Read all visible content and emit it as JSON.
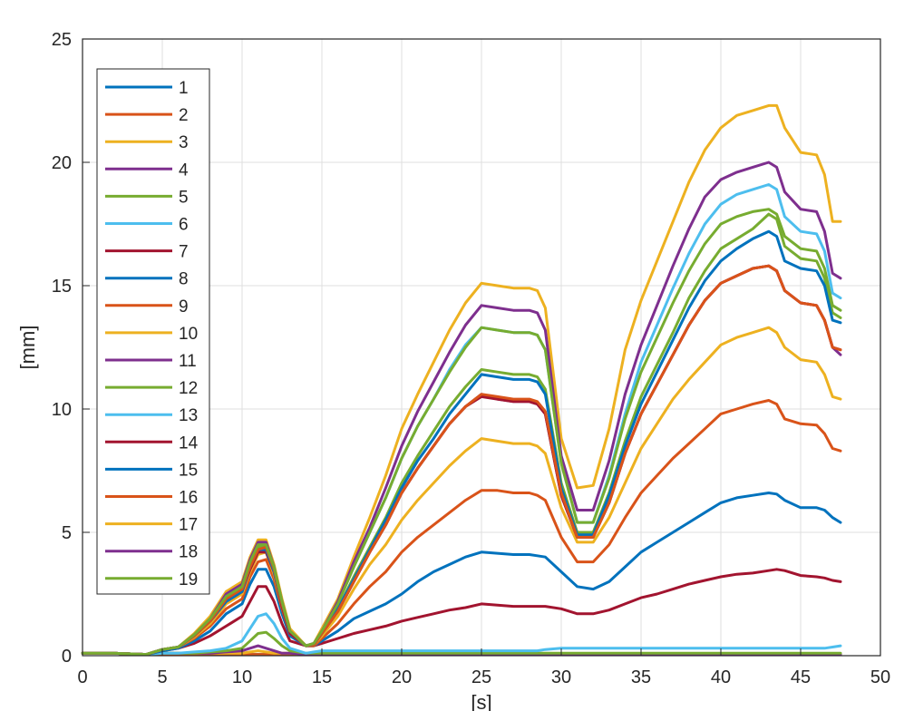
{
  "chart_data": {
    "type": "line",
    "xlabel": "[s]",
    "ylabel": "[mm]",
    "xlim": [
      0,
      50
    ],
    "ylim": [
      0,
      25
    ],
    "x_ticks": [
      0,
      5,
      10,
      15,
      20,
      25,
      30,
      35,
      40,
      45,
      50
    ],
    "y_ticks": [
      0,
      5,
      10,
      15,
      20,
      25
    ],
    "grid": true,
    "legend_placement": "top-left",
    "colors": [
      "#0072BD",
      "#D95319",
      "#EDB120",
      "#7E2F8E",
      "#77AC30",
      "#4DBEEE",
      "#A2142F"
    ],
    "x": [
      0,
      2,
      4,
      5,
      6,
      7,
      8,
      9,
      10,
      10.5,
      11,
      11.5,
      12,
      12.5,
      13,
      14,
      14.5,
      15,
      16,
      17,
      18,
      19,
      20,
      21,
      22,
      23,
      24,
      25,
      26,
      27,
      28,
      28.5,
      29,
      30,
      31,
      32,
      33,
      34,
      35,
      36,
      37,
      38,
      39,
      40,
      41,
      42,
      43,
      43.5,
      44,
      45,
      46,
      46.5,
      47,
      47.5
    ],
    "series": [
      {
        "name": "1",
        "values": [
          0.1,
          0.1,
          0.05,
          0.05,
          0.05,
          0.05,
          0.05,
          0.05,
          0.05,
          0.05,
          0.05,
          0.05,
          0.05,
          0.05,
          0.05,
          0.05,
          0.05,
          0.05,
          0.05,
          0.05,
          0.05,
          0.05,
          0.05,
          0.05,
          0.05,
          0.05,
          0.05,
          0.05,
          0.05,
          0.05,
          0.05,
          0.05,
          0.05,
          0.05,
          0.05,
          0.05,
          0.05,
          0.05,
          0.05,
          0.05,
          0.05,
          0.05,
          0.05,
          0.05,
          0.05,
          0.05,
          0.05,
          0.05,
          0.05,
          0.05,
          0.05,
          0.05,
          0.05,
          0.05
        ]
      },
      {
        "name": "2",
        "values": [
          0.1,
          0.1,
          0.05,
          0.05,
          0.05,
          0.05,
          0.05,
          0.05,
          0.05,
          0.05,
          0.05,
          0.05,
          0.05,
          0.05,
          0.05,
          0.05,
          0.05,
          0.05,
          0.05,
          0.05,
          0.05,
          0.05,
          0.05,
          0.05,
          0.05,
          0.05,
          0.05,
          0.05,
          0.05,
          0.05,
          0.05,
          0.05,
          0.05,
          0.05,
          0.05,
          0.05,
          0.05,
          0.05,
          0.05,
          0.05,
          0.05,
          0.05,
          0.05,
          0.05,
          0.05,
          0.05,
          0.05,
          0.05,
          0.05,
          0.05,
          0.05,
          0.05,
          0.05,
          0.05
        ]
      },
      {
        "name": "3",
        "values": [
          0.1,
          0.1,
          0.05,
          0.1,
          0.1,
          0.1,
          0.1,
          0.1,
          0.1,
          0.15,
          0.2,
          0.15,
          0.1,
          0.1,
          0.1,
          0.05,
          0.05,
          0.05,
          0.05,
          0.05,
          0.05,
          0.05,
          0.05,
          0.05,
          0.05,
          0.05,
          0.05,
          0.05,
          0.05,
          0.05,
          0.05,
          0.05,
          0.05,
          0.05,
          0.05,
          0.05,
          0.05,
          0.05,
          0.05,
          0.05,
          0.05,
          0.05,
          0.05,
          0.05,
          0.05,
          0.05,
          0.05,
          0.05,
          0.05,
          0.05,
          0.05,
          0.05,
          0.05,
          0.05
        ]
      },
      {
        "name": "4",
        "values": [
          0.1,
          0.1,
          0.05,
          0.1,
          0.1,
          0.1,
          0.1,
          0.15,
          0.2,
          0.3,
          0.4,
          0.3,
          0.2,
          0.1,
          0.1,
          0.05,
          0.05,
          0.05,
          0.05,
          0.05,
          0.05,
          0.05,
          0.05,
          0.05,
          0.05,
          0.05,
          0.05,
          0.05,
          0.05,
          0.05,
          0.05,
          0.05,
          0.05,
          0.05,
          0.05,
          0.05,
          0.05,
          0.05,
          0.05,
          0.05,
          0.05,
          0.05,
          0.05,
          0.05,
          0.05,
          0.05,
          0.05,
          0.05,
          0.05,
          0.05,
          0.05,
          0.05,
          0.05,
          0.05
        ]
      },
      {
        "name": "5",
        "values": [
          0.1,
          0.1,
          0.05,
          0.1,
          0.1,
          0.1,
          0.15,
          0.2,
          0.3,
          0.6,
          0.9,
          0.95,
          0.7,
          0.4,
          0.2,
          0.1,
          0.1,
          0.1,
          0.1,
          0.1,
          0.1,
          0.1,
          0.1,
          0.1,
          0.1,
          0.1,
          0.1,
          0.1,
          0.1,
          0.1,
          0.1,
          0.1,
          0.1,
          0.1,
          0.1,
          0.1,
          0.1,
          0.1,
          0.1,
          0.1,
          0.1,
          0.1,
          0.1,
          0.1,
          0.1,
          0.1,
          0.1,
          0.1,
          0.1,
          0.1,
          0.1,
          0.1,
          0.1,
          0.1
        ]
      },
      {
        "name": "6",
        "values": [
          0.1,
          0.1,
          0.05,
          0.1,
          0.1,
          0.15,
          0.2,
          0.3,
          0.6,
          1.1,
          1.6,
          1.7,
          1.3,
          0.7,
          0.3,
          0.1,
          0.15,
          0.2,
          0.2,
          0.2,
          0.2,
          0.2,
          0.2,
          0.2,
          0.2,
          0.2,
          0.2,
          0.2,
          0.2,
          0.2,
          0.2,
          0.2,
          0.25,
          0.3,
          0.3,
          0.3,
          0.3,
          0.3,
          0.3,
          0.3,
          0.3,
          0.3,
          0.3,
          0.3,
          0.3,
          0.3,
          0.3,
          0.3,
          0.3,
          0.3,
          0.3,
          0.3,
          0.35,
          0.4
        ]
      },
      {
        "name": "7",
        "values": [
          0.1,
          0.1,
          0.05,
          0.2,
          0.3,
          0.5,
          0.8,
          1.2,
          1.6,
          2.2,
          2.8,
          2.8,
          2.2,
          1.3,
          0.6,
          0.4,
          0.4,
          0.5,
          0.7,
          0.9,
          1.05,
          1.2,
          1.4,
          1.55,
          1.7,
          1.85,
          1.95,
          2.1,
          2.05,
          2.0,
          2.0,
          2.0,
          2.0,
          1.9,
          1.7,
          1.7,
          1.85,
          2.1,
          2.35,
          2.5,
          2.7,
          2.9,
          3.05,
          3.2,
          3.3,
          3.35,
          3.45,
          3.5,
          3.45,
          3.25,
          3.2,
          3.15,
          3.05,
          3.0
        ]
      },
      {
        "name": "8",
        "values": [
          0.1,
          0.1,
          0.05,
          0.2,
          0.3,
          0.6,
          1.0,
          1.7,
          2.1,
          2.9,
          3.5,
          3.5,
          2.8,
          1.7,
          0.8,
          0.4,
          0.4,
          0.6,
          1.0,
          1.5,
          1.8,
          2.1,
          2.5,
          3.0,
          3.4,
          3.7,
          4.0,
          4.2,
          4.15,
          4.1,
          4.1,
          4.05,
          4.0,
          3.4,
          2.8,
          2.7,
          3.0,
          3.6,
          4.2,
          4.6,
          5.0,
          5.4,
          5.8,
          6.2,
          6.4,
          6.5,
          6.6,
          6.55,
          6.3,
          6.0,
          6.0,
          5.9,
          5.6,
          5.4
        ]
      },
      {
        "name": "9",
        "values": [
          0.1,
          0.1,
          0.05,
          0.25,
          0.35,
          0.7,
          1.2,
          1.9,
          2.3,
          3.2,
          3.8,
          3.9,
          3.1,
          1.9,
          0.9,
          0.4,
          0.4,
          0.7,
          1.3,
          2.1,
          2.8,
          3.4,
          4.2,
          4.8,
          5.3,
          5.8,
          6.3,
          6.7,
          6.7,
          6.6,
          6.6,
          6.5,
          6.3,
          4.8,
          3.8,
          3.8,
          4.5,
          5.6,
          6.6,
          7.3,
          8.0,
          8.6,
          9.2,
          9.8,
          10.0,
          10.2,
          10.35,
          10.2,
          9.6,
          9.4,
          9.35,
          9.0,
          8.4,
          8.3
        ]
      },
      {
        "name": "10",
        "values": [
          0.1,
          0.1,
          0.05,
          0.25,
          0.35,
          0.75,
          1.3,
          2.1,
          2.5,
          3.4,
          4.1,
          4.2,
          3.3,
          2.0,
          0.9,
          0.4,
          0.45,
          0.8,
          1.6,
          2.7,
          3.7,
          4.5,
          5.5,
          6.3,
          7.0,
          7.7,
          8.3,
          8.8,
          8.7,
          8.6,
          8.6,
          8.5,
          8.2,
          6.0,
          4.6,
          4.6,
          5.6,
          7.0,
          8.4,
          9.4,
          10.4,
          11.2,
          11.9,
          12.6,
          12.9,
          13.1,
          13.3,
          13.1,
          12.5,
          12.0,
          11.9,
          11.4,
          10.5,
          10.4
        ]
      },
      {
        "name": "11",
        "values": [
          0.1,
          0.1,
          0.05,
          0.25,
          0.35,
          0.8,
          1.4,
          2.2,
          2.6,
          3.6,
          4.3,
          4.3,
          3.4,
          2.1,
          1.0,
          0.4,
          0.45,
          0.9,
          1.8,
          3.0,
          4.2,
          5.3,
          6.6,
          7.6,
          8.5,
          9.4,
          10.1,
          10.6,
          10.4,
          10.3,
          10.3,
          10.2,
          9.8,
          6.5,
          4.8,
          4.8,
          6.2,
          8.2,
          9.8,
          11.0,
          12.2,
          13.4,
          14.4,
          15.1,
          15.4,
          15.7,
          15.8,
          15.6,
          14.8,
          14.3,
          14.2,
          13.6,
          12.5,
          12.2
        ]
      },
      {
        "name": "12",
        "values": [
          0.1,
          0.1,
          0.05,
          0.25,
          0.35,
          0.8,
          1.4,
          2.3,
          2.7,
          3.7,
          4.4,
          4.4,
          3.5,
          2.1,
          1.0,
          0.4,
          0.45,
          0.9,
          1.9,
          3.2,
          4.4,
          5.6,
          7.0,
          8.1,
          9.1,
          10.1,
          10.9,
          11.6,
          11.5,
          11.4,
          11.4,
          11.3,
          10.8,
          7.0,
          5.0,
          5.0,
          6.6,
          8.7,
          10.5,
          11.8,
          13.1,
          14.5,
          15.6,
          16.5,
          16.9,
          17.3,
          17.9,
          17.7,
          16.6,
          16.1,
          16.0,
          15.3,
          13.9,
          13.7
        ]
      },
      {
        "name": "13",
        "values": [
          0.1,
          0.1,
          0.05,
          0.25,
          0.35,
          0.85,
          1.5,
          2.4,
          2.8,
          3.8,
          4.6,
          4.6,
          3.6,
          2.2,
          1.0,
          0.4,
          0.5,
          1.0,
          2.1,
          3.6,
          5.0,
          6.4,
          8.0,
          9.3,
          10.4,
          11.6,
          12.6,
          13.3,
          13.2,
          13.1,
          13.1,
          13.0,
          12.4,
          7.8,
          5.4,
          5.4,
          7.3,
          9.8,
          11.9,
          13.4,
          14.9,
          16.3,
          17.5,
          18.3,
          18.7,
          18.9,
          19.1,
          18.9,
          17.8,
          17.2,
          17.1,
          16.4,
          14.7,
          14.5
        ]
      },
      {
        "name": "14",
        "values": [
          0.1,
          0.1,
          0.05,
          0.25,
          0.35,
          0.8,
          1.4,
          2.2,
          2.6,
          3.5,
          4.2,
          4.2,
          3.4,
          2.0,
          0.9,
          0.4,
          0.45,
          0.9,
          1.8,
          3.0,
          4.2,
          5.3,
          6.6,
          7.6,
          8.5,
          9.4,
          10.1,
          10.5,
          10.4,
          10.3,
          10.3,
          10.2,
          9.8,
          6.5,
          4.8,
          4.8,
          6.2,
          8.2,
          9.8,
          11.0,
          12.2,
          13.4,
          14.4,
          15.1,
          15.4,
          15.7,
          15.8,
          15.6,
          14.8,
          14.3,
          14.2,
          13.6,
          12.5,
          12.4
        ]
      },
      {
        "name": "15",
        "values": [
          0.1,
          0.1,
          0.05,
          0.25,
          0.35,
          0.8,
          1.4,
          2.2,
          2.6,
          3.6,
          4.3,
          4.3,
          3.4,
          2.1,
          1.0,
          0.4,
          0.45,
          0.9,
          1.9,
          3.1,
          4.3,
          5.5,
          6.8,
          7.9,
          8.8,
          9.8,
          10.6,
          11.4,
          11.3,
          11.2,
          11.2,
          11.1,
          10.6,
          6.8,
          4.9,
          4.9,
          6.5,
          8.5,
          10.2,
          11.5,
          12.8,
          14.1,
          15.2,
          16.0,
          16.5,
          16.9,
          17.2,
          17.0,
          16.0,
          15.7,
          15.6,
          15.0,
          13.6,
          13.5
        ]
      },
      {
        "name": "16",
        "values": [
          0.1,
          0.1,
          0.05,
          0.25,
          0.35,
          0.8,
          1.4,
          2.3,
          2.7,
          3.6,
          4.3,
          4.4,
          3.5,
          2.1,
          1.0,
          0.4,
          0.45,
          0.9,
          1.8,
          3.0,
          4.2,
          5.3,
          6.6,
          7.6,
          8.5,
          9.4,
          10.1,
          10.6,
          10.5,
          10.4,
          10.4,
          10.3,
          9.9,
          6.6,
          4.8,
          4.8,
          6.2,
          8.2,
          9.8,
          11.0,
          12.2,
          13.4,
          14.4,
          15.1,
          15.4,
          15.7,
          15.8,
          15.6,
          14.8,
          14.3,
          14.2,
          13.6,
          12.5,
          12.4
        ]
      },
      {
        "name": "17",
        "values": [
          0.1,
          0.1,
          0.05,
          0.25,
          0.35,
          0.9,
          1.6,
          2.6,
          3.0,
          4.0,
          4.7,
          4.7,
          3.7,
          2.3,
          1.1,
          0.4,
          0.5,
          1.1,
          2.3,
          4.0,
          5.6,
          7.3,
          9.2,
          10.6,
          11.9,
          13.2,
          14.3,
          15.1,
          15.0,
          14.9,
          14.9,
          14.8,
          14.1,
          8.8,
          6.8,
          6.9,
          9.2,
          12.4,
          14.4,
          16.0,
          17.6,
          19.2,
          20.5,
          21.4,
          21.9,
          22.1,
          22.3,
          22.3,
          21.4,
          20.4,
          20.3,
          19.5,
          17.6,
          17.6
        ]
      },
      {
        "name": "18",
        "values": [
          0.1,
          0.1,
          0.05,
          0.25,
          0.35,
          0.85,
          1.5,
          2.5,
          2.9,
          3.9,
          4.6,
          4.6,
          3.6,
          2.2,
          1.0,
          0.4,
          0.5,
          1.0,
          2.2,
          3.8,
          5.2,
          6.8,
          8.5,
          9.9,
          11.1,
          12.3,
          13.4,
          14.2,
          14.1,
          14.0,
          14.0,
          13.9,
          13.2,
          8.1,
          5.9,
          5.9,
          7.9,
          10.6,
          12.6,
          14.2,
          15.8,
          17.3,
          18.6,
          19.3,
          19.6,
          19.8,
          20.0,
          19.8,
          18.8,
          18.1,
          18.0,
          17.2,
          15.5,
          15.3
        ]
      },
      {
        "name": "19",
        "values": [
          0.1,
          0.1,
          0.05,
          0.25,
          0.35,
          0.85,
          1.5,
          2.4,
          2.8,
          3.8,
          4.5,
          4.5,
          3.6,
          2.2,
          1.0,
          0.4,
          0.5,
          1.0,
          2.1,
          3.6,
          5.0,
          6.4,
          8.0,
          9.3,
          10.4,
          11.5,
          12.5,
          13.3,
          13.2,
          13.1,
          13.1,
          13.0,
          12.4,
          7.8,
          5.4,
          5.4,
          7.2,
          9.6,
          11.5,
          12.9,
          14.3,
          15.6,
          16.7,
          17.5,
          17.8,
          18.0,
          18.1,
          17.9,
          17.0,
          16.5,
          16.4,
          15.7,
          14.2,
          14.0
        ]
      }
    ]
  }
}
